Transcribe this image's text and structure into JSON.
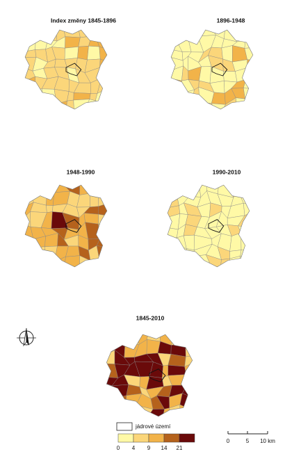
{
  "maps": [
    {
      "title": "Index změny 1845-1896"
    },
    {
      "title": "1896-1948"
    },
    {
      "title": "1948-1990"
    },
    {
      "title": "1990-2010"
    },
    {
      "title": "1845-2010"
    }
  ],
  "legend": {
    "label": "jádrové území",
    "breaks": [
      0,
      4,
      9,
      14,
      21
    ],
    "colors": [
      "#fff9a6",
      "#fbd67a",
      "#f2b349",
      "#b5621c",
      "#6a0a0a"
    ]
  },
  "scale": {
    "labels": [
      "0",
      "5",
      "10 km"
    ]
  }
}
